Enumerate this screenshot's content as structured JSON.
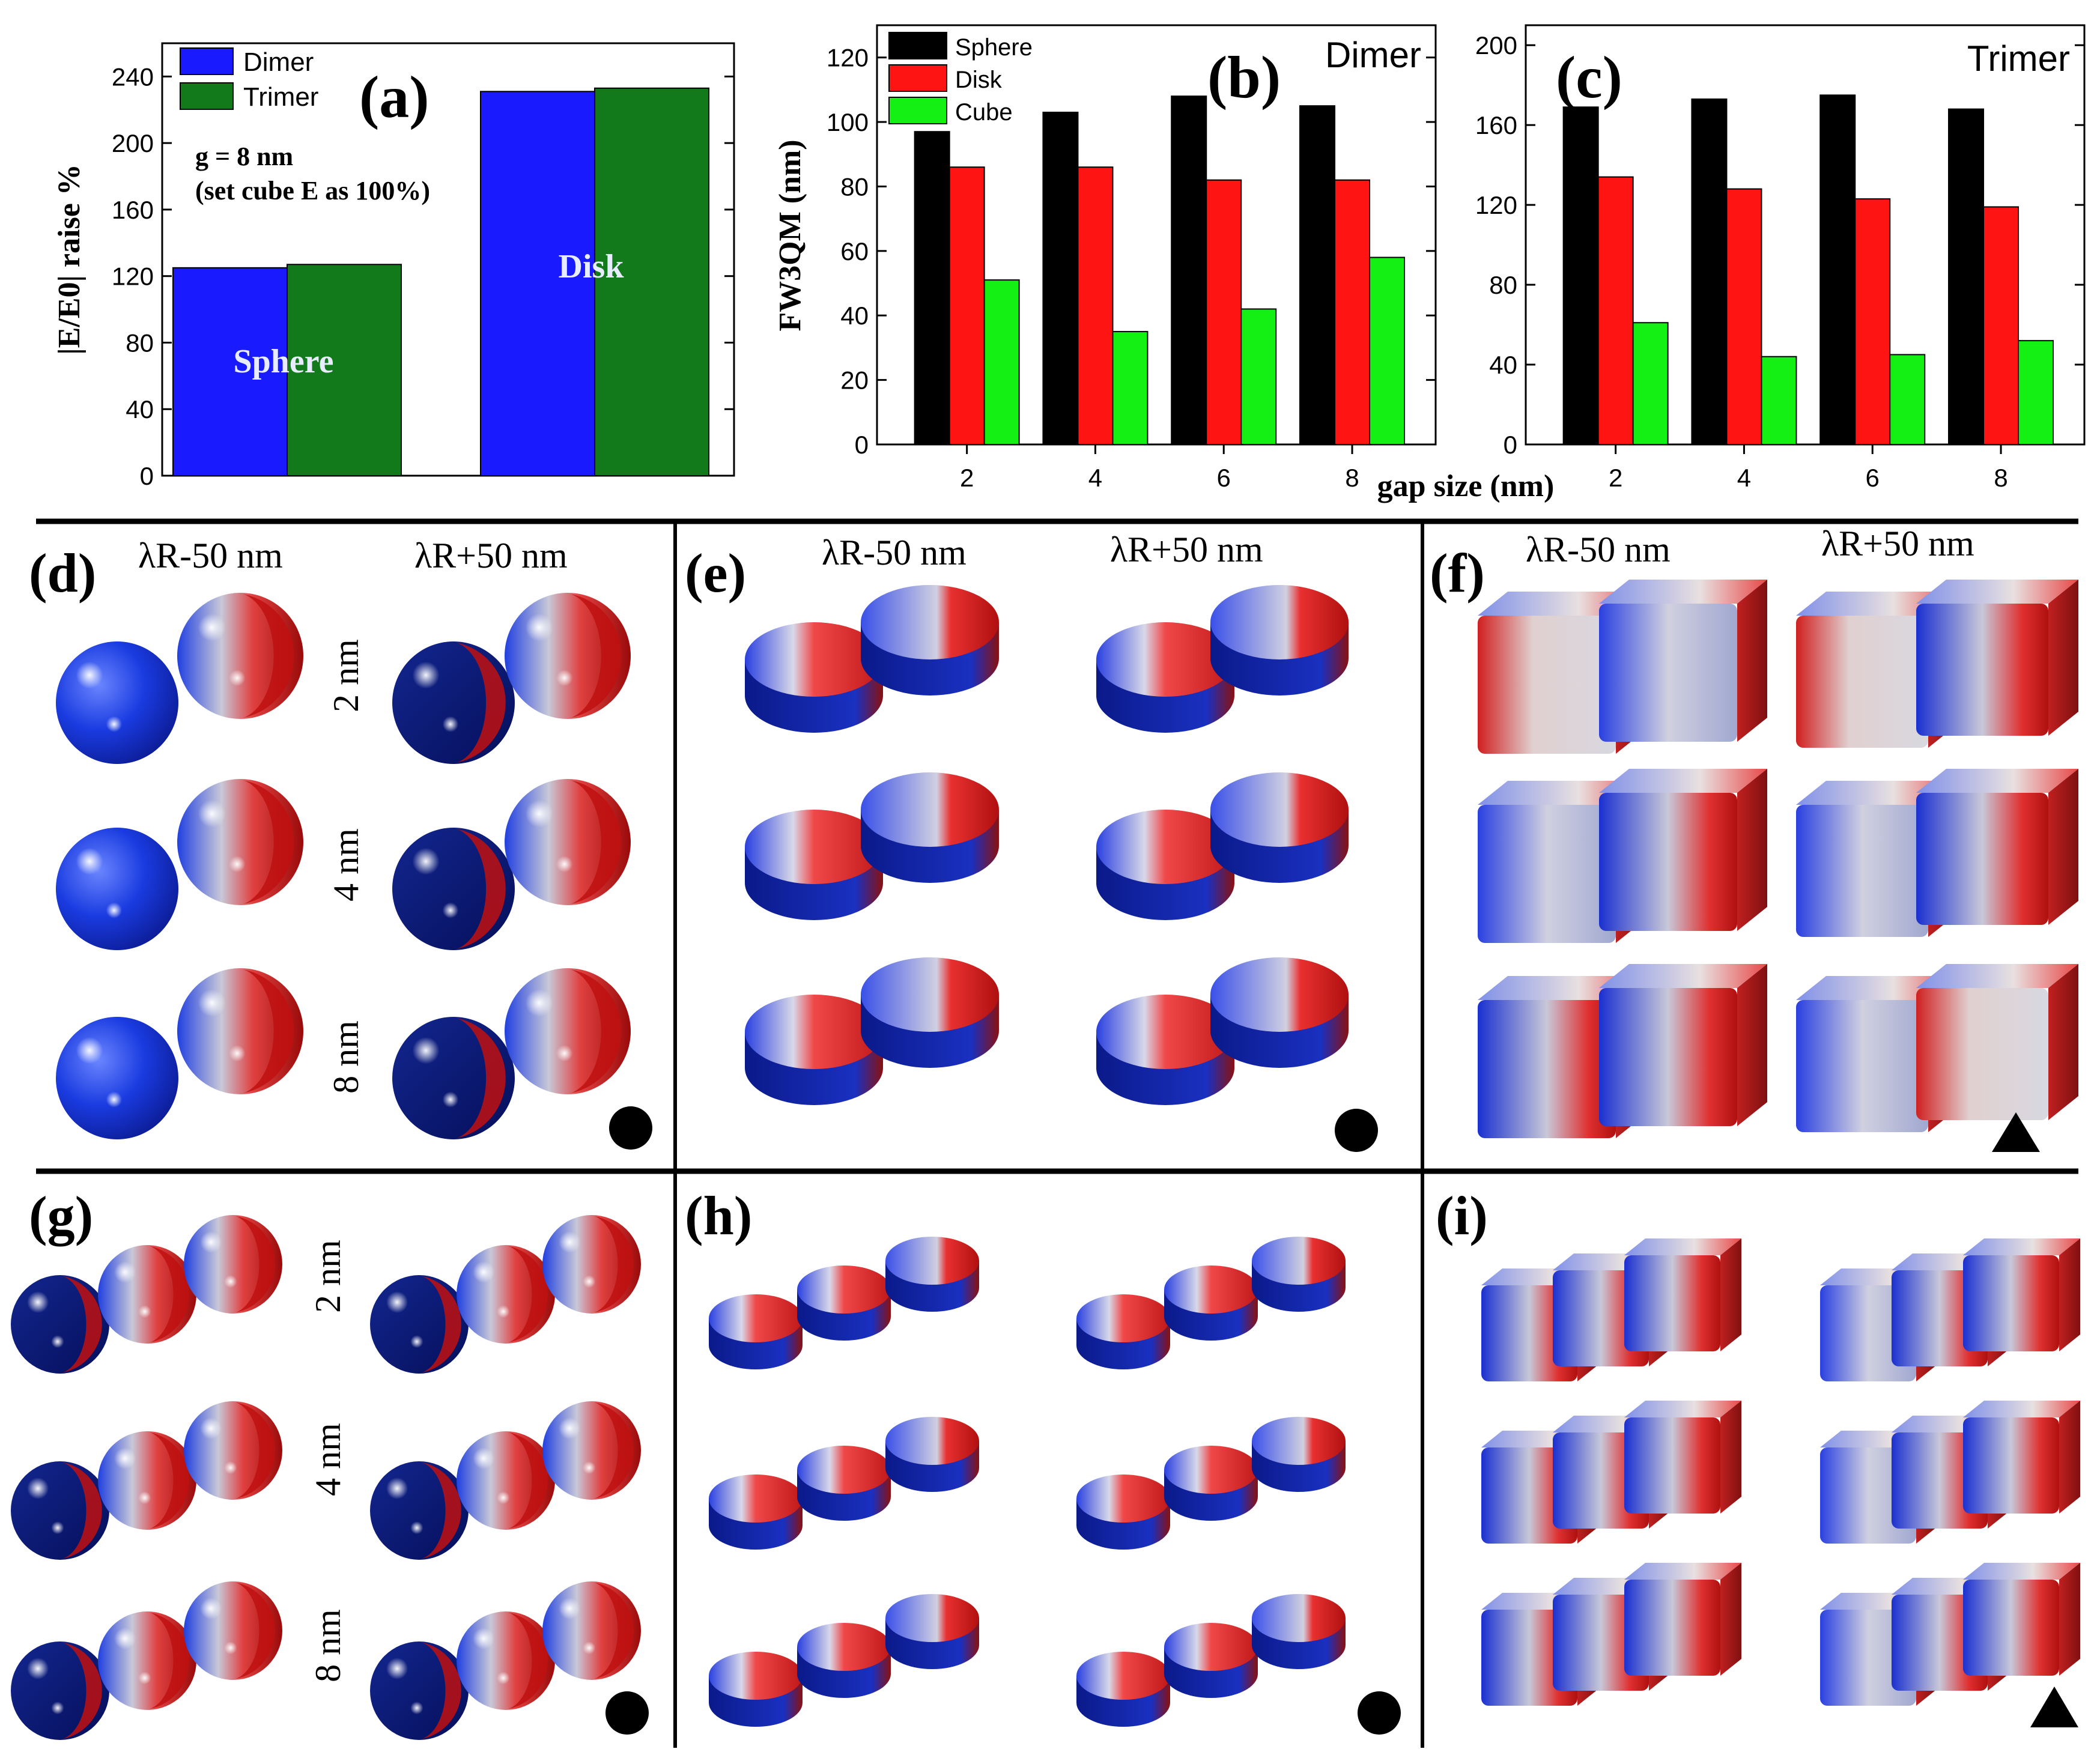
{
  "colors": {
    "blue": "#1a1aff",
    "green": "#127a1a",
    "black": "#000000",
    "red": "#ff1414",
    "lime": "#14f014",
    "field_blue": "#1838d8",
    "field_navy": "#0a1a8a",
    "field_red": "#d81818",
    "field_white": "#e6e6e6"
  },
  "chart_data": [
    {
      "id": "a",
      "type": "bar",
      "panel_label": "(a)",
      "categories": [
        "Sphere",
        "Disk"
      ],
      "category_labels_inside": true,
      "series": [
        {
          "name": "Dimer",
          "values": [
            125,
            231
          ],
          "color": "#1a1aff"
        },
        {
          "name": "Trimer",
          "values": [
            127,
            233
          ],
          "color": "#127a1a"
        }
      ],
      "ylabel": "|E/E0| raise %",
      "ylim": [
        0,
        260
      ],
      "yticks": [
        0,
        40,
        80,
        120,
        160,
        200,
        240
      ],
      "annotations": [
        "g = 8 nm",
        "(set cube E as 100%)"
      ],
      "legend": "top-left"
    },
    {
      "id": "b",
      "type": "bar",
      "panel_label": "(b)",
      "title": "Dimer",
      "categories": [
        "2",
        "4",
        "6",
        "8"
      ],
      "series": [
        {
          "name": "Sphere",
          "values": [
            97,
            103,
            108,
            105
          ],
          "color": "#000000"
        },
        {
          "name": "Disk",
          "values": [
            86,
            86,
            82,
            82
          ],
          "color": "#ff1414"
        },
        {
          "name": "Cube",
          "values": [
            51,
            35,
            42,
            58
          ],
          "color": "#14f014"
        }
      ],
      "ylabel": "FW3QM (nm)",
      "ylim": [
        0,
        130
      ],
      "yticks": [
        0,
        20,
        40,
        60,
        80,
        100,
        120
      ],
      "legend": "top-left"
    },
    {
      "id": "c",
      "type": "bar",
      "panel_label": "(c)",
      "title": "Trimer",
      "categories": [
        "2",
        "4",
        "6",
        "8"
      ],
      "series": [
        {
          "name": "Sphere",
          "values": [
            169,
            173,
            175,
            168
          ],
          "color": "#000000"
        },
        {
          "name": "Disk",
          "values": [
            134,
            128,
            123,
            119
          ],
          "color": "#ff1414"
        },
        {
          "name": "Cube",
          "values": [
            61,
            44,
            45,
            52
          ],
          "color": "#14f014"
        }
      ],
      "ylim": [
        0,
        210
      ],
      "yticks": [
        0,
        40,
        80,
        120,
        160,
        200
      ]
    }
  ],
  "xlabel_shared": "gap size (nm)",
  "field_panels": {
    "labels": [
      "(d)",
      "(e)",
      "(f)",
      "(g)",
      "(h)",
      "(i)"
    ],
    "col_headers": [
      "λR-50 nm",
      "λR+50 nm"
    ],
    "gap_labels": [
      "2 nm",
      "4 nm",
      "8 nm"
    ],
    "markers": [
      "circle",
      "circle",
      "triangle",
      "circle",
      "circle",
      "triangle"
    ]
  }
}
